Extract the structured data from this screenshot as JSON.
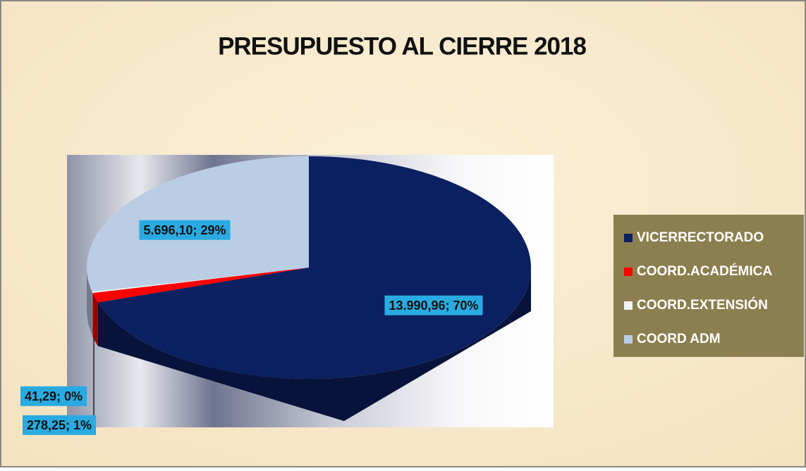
{
  "chart_data": {
    "type": "pie",
    "title": "PRESUPUESTO AL CIERRE 2018",
    "categories": [
      "VICERRECTORADO",
      "COORD.ACADÉMICA",
      "COORD.EXTENSIÓN",
      "COORD ADM"
    ],
    "values": [
      13990.96,
      278.25,
      41.29,
      5696.1
    ],
    "value_labels": [
      "13.990,96; 70%",
      "278,25; 1%",
      "41,29; 0%",
      "5.696,10; 29%"
    ],
    "colors": [
      "#0b2060",
      "#ff0000",
      "#f2f2f2",
      "#b9cde5"
    ],
    "legend": "right"
  }
}
